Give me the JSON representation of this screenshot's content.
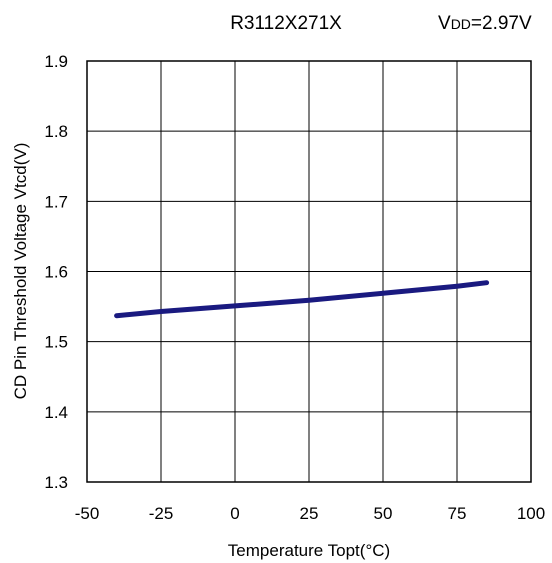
{
  "chart_data": {
    "type": "line",
    "title": "R3112X271X",
    "condition": {
      "prefix": "V",
      "subscript": "DD",
      "value": "=2.97V"
    },
    "xlabel": "Temperature Topt(°C)",
    "ylabel": "CD Pin Threshold Voltage Vtcd(V)",
    "xlim": [
      -50,
      100
    ],
    "ylim": [
      1.3,
      1.9
    ],
    "x_ticks": [
      "-50",
      "-25",
      "0",
      "25",
      "50",
      "75",
      "100"
    ],
    "y_ticks": [
      "1.9",
      "1.8",
      "1.7",
      "1.6",
      "1.5",
      "1.4",
      "1.3"
    ],
    "grid": true,
    "series": [
      {
        "color": "#1a1a80",
        "x": [
          -40,
          -25,
          0,
          25,
          50,
          75,
          85
        ],
        "y": [
          1.537,
          1.543,
          1.551,
          1.559,
          1.569,
          1.579,
          1.584
        ]
      }
    ]
  }
}
